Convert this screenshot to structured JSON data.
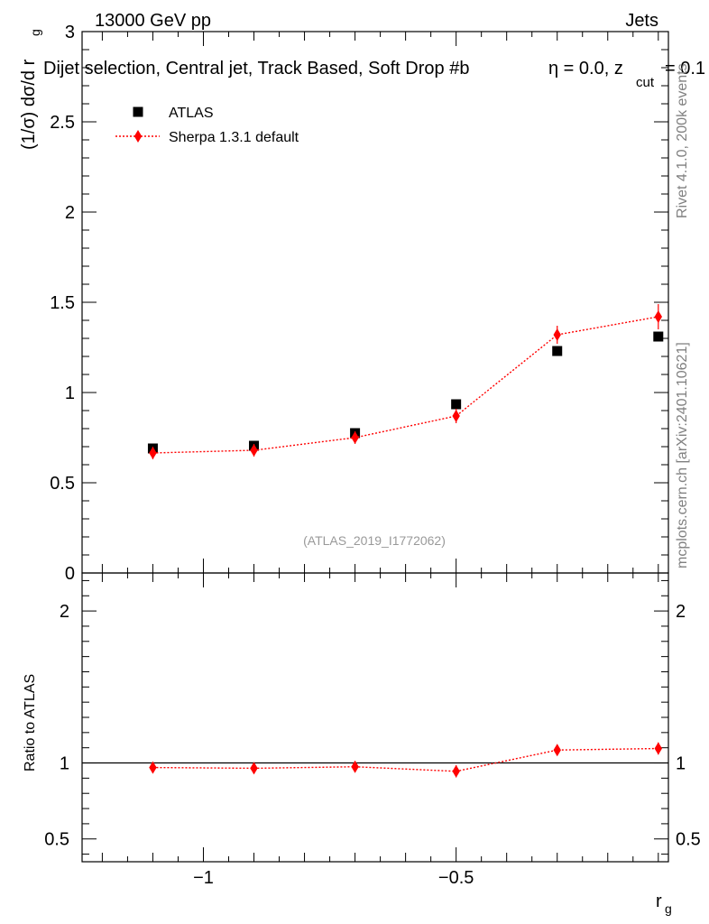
{
  "header": {
    "left": "13000 GeV pp",
    "right": "Jets",
    "subtitle": "Dijet selection, Central jet, Track Based, Soft Drop #b",
    "subtitle_cut": "η = 0.0, z",
    "subtitle_cut_sub": "cut",
    "subtitle_cut_tail": " = 0.1"
  },
  "side_text": {
    "rivet": "Rivet 4.1.0,  200k events",
    "mcplots": "mcplots.cern.ch [arXiv:2401.10621]"
  },
  "watermark": "(ATLAS_2019_I1772062)",
  "chart_data": [
    {
      "type": "scatter",
      "panel": "main",
      "ylabel": "(1/σ) dσ/d r",
      "ylabel_sub": "g",
      "ylim": [
        0,
        3
      ],
      "yticks": [
        0,
        0.5,
        1,
        1.5,
        2,
        2.5,
        3
      ],
      "ytick_labels": [
        "0",
        "0.5",
        "1",
        "1.5",
        "2",
        "2.5",
        "3"
      ],
      "xlim": [
        -1.24,
        -0.08
      ],
      "legend": {
        "position": "top-left",
        "entries": [
          "ATLAS",
          "Sherpa 1.3.1 default"
        ]
      },
      "series": [
        {
          "name": "ATLAS",
          "marker": "square",
          "color": "#000000",
          "x": [
            -1.1,
            -0.9,
            -0.7,
            -0.5,
            -0.3,
            -0.1
          ],
          "y": [
            0.69,
            0.705,
            0.775,
            0.935,
            1.23,
            1.31
          ],
          "yerr": [
            0,
            0,
            0,
            0,
            0,
            0
          ]
        },
        {
          "name": "Sherpa 1.3.1 default",
          "marker": "diamond",
          "line": "dotted",
          "color": "#ff0000",
          "x": [
            -1.1,
            -0.9,
            -0.7,
            -0.5,
            -0.3,
            -0.1
          ],
          "y": [
            0.665,
            0.68,
            0.75,
            0.87,
            1.32,
            1.42
          ],
          "yerr": [
            0.035,
            0.035,
            0.035,
            0.04,
            0.05,
            0.07
          ]
        }
      ]
    },
    {
      "type": "scatter",
      "panel": "ratio",
      "ylabel": "Ratio to ATLAS",
      "ylim": [
        0.35,
        2.25
      ],
      "yticks": [
        0.5,
        1,
        2
      ],
      "ytick_labels": [
        "0.5",
        "1",
        "2"
      ],
      "reference_line": 1,
      "xlim": [
        -1.24,
        -0.08
      ],
      "xticks": [
        -1,
        -0.5
      ],
      "xtick_labels": [
        "−1",
        "−0.5"
      ],
      "xlabel": "r",
      "xlabel_sub": "g",
      "series": [
        {
          "name": "Sherpa 1.3.1 default",
          "marker": "diamond",
          "line": "dotted",
          "color": "#ff0000",
          "x": [
            -1.1,
            -0.9,
            -0.7,
            -0.5,
            -0.3,
            -0.1
          ],
          "y": [
            0.97,
            0.965,
            0.975,
            0.945,
            1.085,
            1.095
          ],
          "yerr": [
            0.035,
            0.035,
            0.035,
            0.04,
            0.035,
            0.04
          ]
        }
      ]
    }
  ]
}
